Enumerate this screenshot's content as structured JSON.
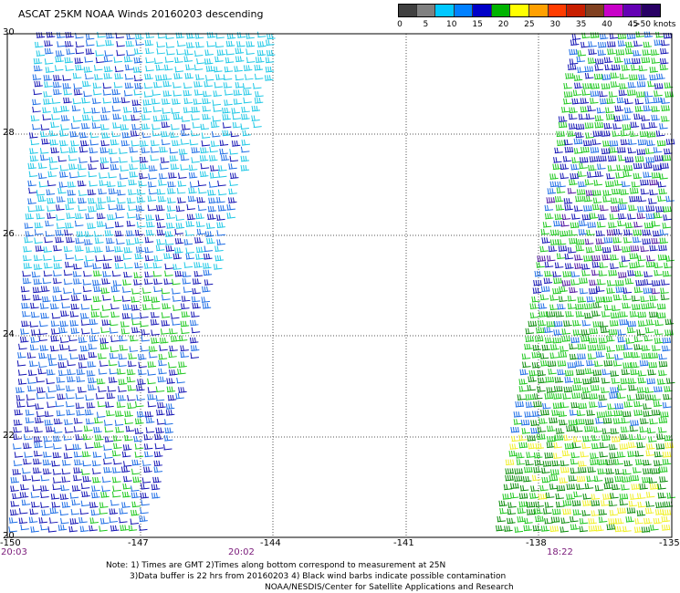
{
  "title": "ASCAT 25KM NOAA Winds 20160203 descending",
  "legend": {
    "labels": [
      "0",
      "5",
      "10",
      "15",
      "20",
      "25",
      "30",
      "35",
      "40",
      "45",
      ">50 knots"
    ],
    "colors": [
      "#404040",
      "#808080",
      "#00c8ff",
      "#0080ff",
      "#0000c8",
      "#00b400",
      "#ffff00",
      "#ffa000",
      "#ff3c00",
      "#c81e00",
      "#804020",
      "#c800c8",
      "#6400b4",
      "#280064"
    ],
    "unit": "knots"
  },
  "axes": {
    "lat_labels": [
      "30",
      "28",
      "26",
      "24",
      "22",
      "20"
    ],
    "lon_labels": [
      "-150",
      "-147",
      "-144",
      "-141",
      "-138",
      "-135"
    ]
  },
  "pass_times": [
    "20:03",
    "20:02",
    "18:22"
  ],
  "notes": {
    "line1": "Note: 1) Times are GMT 2)Times along bottom correspond to measurement at 25N",
    "line2": "3)Data buffer is 22 hrs from 20160203 4) Black wind barbs indicate possible contamination",
    "credit": "NOAA/NESDIS/Center for Satellite Applications and Research"
  }
}
